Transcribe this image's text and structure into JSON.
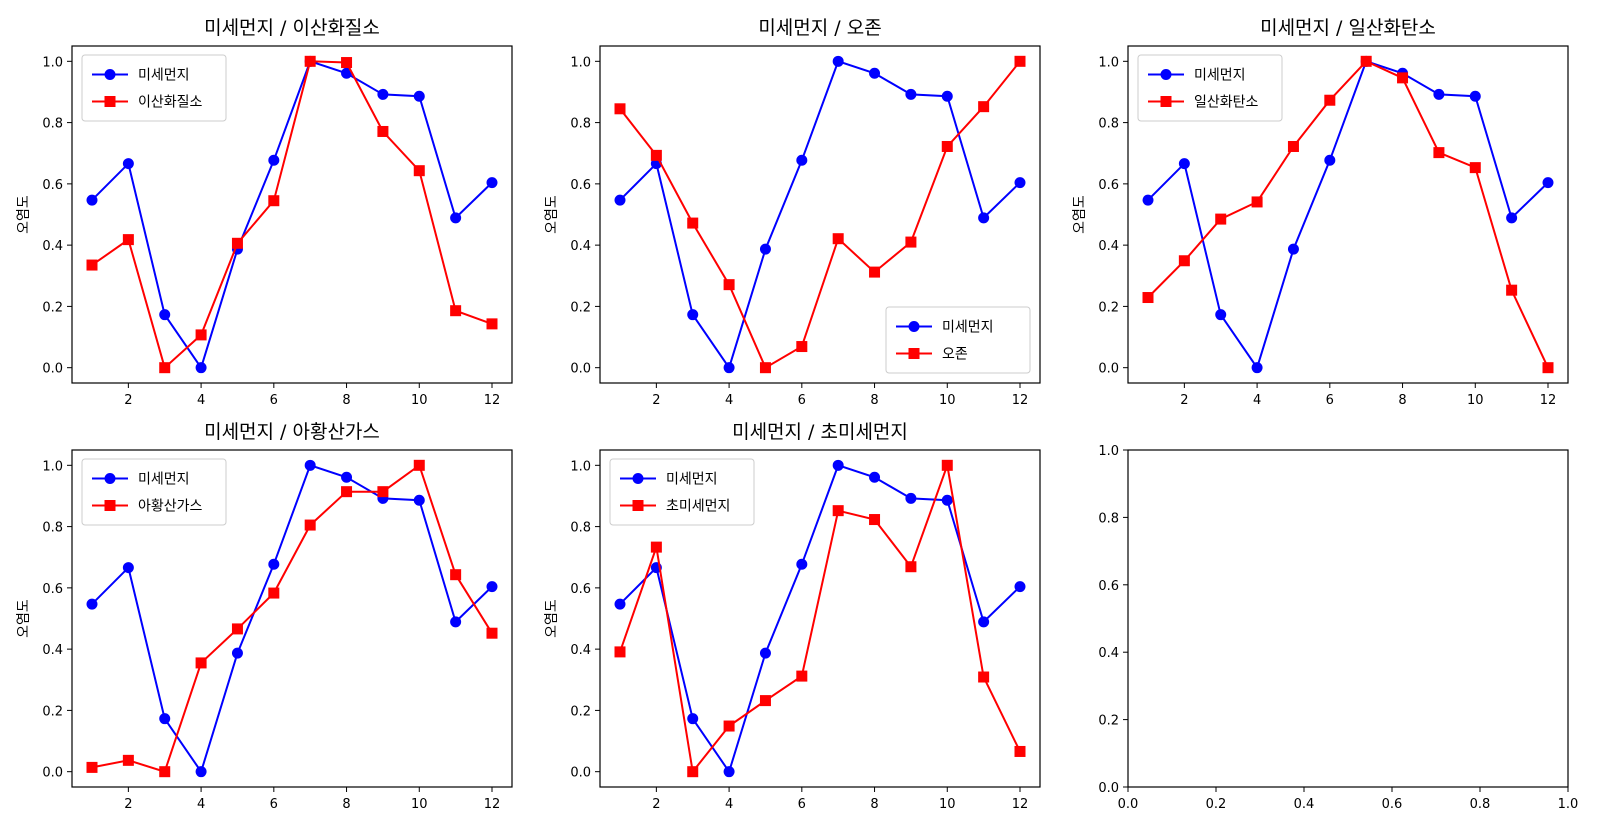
{
  "chart_data": [
    {
      "type": "line",
      "title": "미세먼지 / 이산화질소",
      "xlabel": "",
      "ylabel": "오염도",
      "x": [
        1,
        2,
        3,
        4,
        5,
        6,
        7,
        8,
        9,
        10,
        11,
        12
      ],
      "xticks": [
        2,
        4,
        6,
        8,
        10,
        12
      ],
      "xlim": [
        0.45,
        12.55
      ],
      "yticks": [
        0.0,
        0.2,
        0.4,
        0.6,
        0.8,
        1.0
      ],
      "ylim": [
        -0.05,
        1.05
      ],
      "legend": "upper-left",
      "series": [
        {
          "name": "미세먼지",
          "color": "#0000ff",
          "marker": "circle",
          "values": [
            0.547,
            0.666,
            0.173,
            0.0,
            0.387,
            0.677,
            1.0,
            0.961,
            0.892,
            0.886,
            0.489,
            0.604
          ]
        },
        {
          "name": "이산화질소",
          "color": "#ff0000",
          "marker": "square",
          "values": [
            0.335,
            0.418,
            0.0,
            0.107,
            0.406,
            0.545,
            1.0,
            0.996,
            0.771,
            0.643,
            0.186,
            0.143
          ]
        }
      ]
    },
    {
      "type": "line",
      "title": "미세먼지 / 오존",
      "xlabel": "",
      "ylabel": "오염도",
      "x": [
        1,
        2,
        3,
        4,
        5,
        6,
        7,
        8,
        9,
        10,
        11,
        12
      ],
      "xticks": [
        2,
        4,
        6,
        8,
        10,
        12
      ],
      "xlim": [
        0.45,
        12.55
      ],
      "yticks": [
        0.0,
        0.2,
        0.4,
        0.6,
        0.8,
        1.0
      ],
      "ylim": [
        -0.05,
        1.05
      ],
      "legend": "lower-right",
      "series": [
        {
          "name": "미세먼지",
          "color": "#0000ff",
          "marker": "circle",
          "values": [
            0.547,
            0.666,
            0.173,
            0.0,
            0.387,
            0.677,
            1.0,
            0.961,
            0.892,
            0.886,
            0.489,
            0.604
          ]
        },
        {
          "name": "오존",
          "color": "#ff0000",
          "marker": "square",
          "values": [
            0.845,
            0.693,
            0.472,
            0.271,
            0.0,
            0.069,
            0.421,
            0.312,
            0.41,
            0.722,
            0.852,
            1.0
          ]
        }
      ]
    },
    {
      "type": "line",
      "title": "미세먼지 / 일산화탄소",
      "xlabel": "",
      "ylabel": "오염도",
      "x": [
        1,
        2,
        3,
        4,
        5,
        6,
        7,
        8,
        9,
        10,
        11,
        12
      ],
      "xticks": [
        2,
        4,
        6,
        8,
        10,
        12
      ],
      "xlim": [
        0.45,
        12.55
      ],
      "yticks": [
        0.0,
        0.2,
        0.4,
        0.6,
        0.8,
        1.0
      ],
      "ylim": [
        -0.05,
        1.05
      ],
      "legend": "upper-left",
      "series": [
        {
          "name": "미세먼지",
          "color": "#0000ff",
          "marker": "circle",
          "values": [
            0.547,
            0.666,
            0.173,
            0.0,
            0.387,
            0.677,
            1.0,
            0.961,
            0.892,
            0.886,
            0.489,
            0.604
          ]
        },
        {
          "name": "일산화탄소",
          "color": "#ff0000",
          "marker": "square",
          "values": [
            0.229,
            0.349,
            0.485,
            0.541,
            0.722,
            0.873,
            1.0,
            0.946,
            0.702,
            0.653,
            0.253,
            0.0
          ]
        }
      ]
    },
    {
      "type": "line",
      "title": "미세먼지 / 아황산가스",
      "xlabel": "",
      "ylabel": "오염도",
      "x": [
        1,
        2,
        3,
        4,
        5,
        6,
        7,
        8,
        9,
        10,
        11,
        12
      ],
      "xticks": [
        2,
        4,
        6,
        8,
        10,
        12
      ],
      "xlim": [
        0.45,
        12.55
      ],
      "yticks": [
        0.0,
        0.2,
        0.4,
        0.6,
        0.8,
        1.0
      ],
      "ylim": [
        -0.05,
        1.05
      ],
      "legend": "upper-left",
      "series": [
        {
          "name": "미세먼지",
          "color": "#0000ff",
          "marker": "circle",
          "values": [
            0.547,
            0.666,
            0.173,
            0.0,
            0.387,
            0.677,
            1.0,
            0.961,
            0.892,
            0.886,
            0.489,
            0.604
          ]
        },
        {
          "name": "아황산가스",
          "color": "#ff0000",
          "marker": "square",
          "values": [
            0.014,
            0.037,
            0.0,
            0.355,
            0.466,
            0.583,
            0.805,
            0.914,
            0.914,
            1.0,
            0.643,
            0.452
          ]
        }
      ]
    },
    {
      "type": "line",
      "title": "미세먼지 / 초미세먼지",
      "xlabel": "",
      "ylabel": "오염도",
      "x": [
        1,
        2,
        3,
        4,
        5,
        6,
        7,
        8,
        9,
        10,
        11,
        12
      ],
      "xticks": [
        2,
        4,
        6,
        8,
        10,
        12
      ],
      "xlim": [
        0.45,
        12.55
      ],
      "yticks": [
        0.0,
        0.2,
        0.4,
        0.6,
        0.8,
        1.0
      ],
      "ylim": [
        -0.05,
        1.05
      ],
      "legend": "upper-left",
      "series": [
        {
          "name": "미세먼지",
          "color": "#0000ff",
          "marker": "circle",
          "values": [
            0.547,
            0.666,
            0.173,
            0.0,
            0.387,
            0.677,
            1.0,
            0.961,
            0.892,
            0.886,
            0.489,
            0.604
          ]
        },
        {
          "name": "초미세먼지",
          "color": "#ff0000",
          "marker": "square",
          "values": [
            0.391,
            0.733,
            0.0,
            0.149,
            0.232,
            0.312,
            0.852,
            0.823,
            0.669,
            1.0,
            0.309,
            0.066
          ]
        }
      ]
    },
    {
      "type": "line",
      "title": "",
      "xlabel": "",
      "ylabel": "",
      "x": [],
      "xticks": [
        0.0,
        0.2,
        0.4,
        0.6,
        0.8,
        1.0
      ],
      "xlim": [
        0.0,
        1.0
      ],
      "yticks": [
        0.0,
        0.2,
        0.4,
        0.6,
        0.8,
        1.0
      ],
      "ylim": [
        0.0,
        1.0
      ],
      "legend": "none",
      "series": []
    }
  ]
}
